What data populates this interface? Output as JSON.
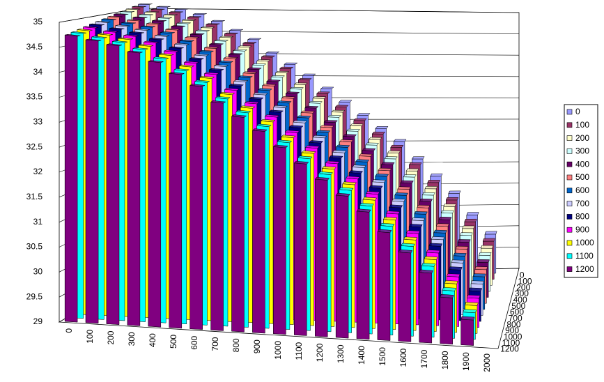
{
  "chart_data": {
    "type": "bar",
    "categories": [
      "0",
      "100",
      "200",
      "300",
      "400",
      "500",
      "600",
      "700",
      "800",
      "900",
      "1000",
      "1100",
      "1200",
      "1300",
      "1400",
      "1500",
      "1600",
      "1700",
      "1800",
      "1900",
      "2000"
    ],
    "ylim": [
      29,
      35
    ],
    "yticks": [
      29,
      29.5,
      30,
      30.5,
      31,
      31.5,
      32,
      32.5,
      33,
      33.5,
      34,
      34.5,
      35
    ],
    "grid": true,
    "legend": "right",
    "series": [
      {
        "name": "0",
        "color": "#9999ff",
        "values": [
          35.11,
          35.06,
          35.01,
          34.91,
          34.76,
          34.56,
          34.36,
          34.06,
          33.81,
          33.56,
          33.26,
          32.96,
          32.66,
          32.36,
          32.06,
          31.66,
          31.26,
          30.86,
          30.36,
          29.91,
          null
        ]
      },
      {
        "name": "100",
        "color": "#993366",
        "values": [
          35.08,
          35.03,
          34.98,
          34.88,
          34.73,
          34.53,
          34.33,
          34.03,
          33.78,
          33.53,
          33.23,
          32.93,
          32.63,
          32.33,
          32.03,
          31.63,
          31.23,
          30.83,
          30.33,
          29.88,
          null
        ]
      },
      {
        "name": "200",
        "color": "#ffffcc",
        "values": [
          35.05,
          35.0,
          34.95,
          34.85,
          34.7,
          34.5,
          34.3,
          34.0,
          33.75,
          33.5,
          33.2,
          32.9,
          32.6,
          32.3,
          32.0,
          31.6,
          31.2,
          30.8,
          30.3,
          29.85,
          null
        ]
      },
      {
        "name": "300",
        "color": "#ccffff",
        "values": [
          35.02,
          34.97,
          34.92,
          34.82,
          34.67,
          34.47,
          34.27,
          33.97,
          33.72,
          33.47,
          33.17,
          32.87,
          32.57,
          32.27,
          31.97,
          31.57,
          31.17,
          30.77,
          30.27,
          29.82,
          null
        ]
      },
      {
        "name": "400",
        "color": "#660066",
        "values": [
          34.99,
          34.94,
          34.89,
          34.79,
          34.64,
          34.44,
          34.24,
          33.94,
          33.69,
          33.44,
          33.14,
          32.84,
          32.54,
          32.24,
          31.94,
          31.54,
          31.14,
          30.74,
          30.24,
          29.79,
          null
        ]
      },
      {
        "name": "500",
        "color": "#ff8080",
        "values": [
          34.96,
          34.91,
          34.86,
          34.76,
          34.61,
          34.41,
          34.21,
          33.91,
          33.66,
          33.41,
          33.11,
          32.81,
          32.51,
          32.21,
          31.91,
          31.51,
          31.11,
          30.71,
          30.21,
          29.76,
          null
        ]
      },
      {
        "name": "600",
        "color": "#0066cc",
        "values": [
          34.93,
          34.88,
          34.83,
          34.73,
          34.58,
          34.38,
          34.18,
          33.88,
          33.63,
          33.38,
          33.08,
          32.78,
          32.48,
          32.18,
          31.88,
          31.48,
          31.08,
          30.68,
          30.18,
          29.73,
          null
        ]
      },
      {
        "name": "700",
        "color": "#ccccff",
        "values": [
          34.9,
          34.85,
          34.8,
          34.7,
          34.55,
          34.35,
          34.15,
          33.85,
          33.6,
          33.35,
          33.05,
          32.75,
          32.45,
          32.15,
          31.85,
          31.45,
          31.05,
          30.65,
          30.15,
          29.7,
          null
        ]
      },
      {
        "name": "800",
        "color": "#000080",
        "values": [
          34.87,
          34.82,
          34.77,
          34.67,
          34.52,
          34.32,
          34.12,
          33.82,
          33.57,
          33.32,
          33.02,
          32.72,
          32.42,
          32.12,
          31.82,
          31.42,
          31.02,
          30.62,
          30.12,
          29.67,
          null
        ]
      },
      {
        "name": "900",
        "color": "#ff00ff",
        "values": [
          34.84,
          34.79,
          34.74,
          34.64,
          34.49,
          34.29,
          34.09,
          33.79,
          33.54,
          33.29,
          32.99,
          32.69,
          32.39,
          32.09,
          31.79,
          31.39,
          30.99,
          30.59,
          30.09,
          29.64,
          null
        ]
      },
      {
        "name": "1000",
        "color": "#ffff00",
        "values": [
          34.81,
          34.76,
          34.71,
          34.61,
          34.46,
          34.26,
          34.06,
          33.76,
          33.51,
          33.26,
          32.96,
          32.66,
          32.36,
          32.06,
          31.76,
          31.36,
          30.96,
          30.56,
          30.06,
          29.61,
          null
        ]
      },
      {
        "name": "1100",
        "color": "#00ffff",
        "values": [
          34.78,
          34.73,
          34.68,
          34.58,
          34.43,
          34.23,
          34.03,
          33.73,
          33.48,
          33.23,
          32.93,
          32.63,
          32.33,
          32.03,
          31.73,
          31.33,
          30.93,
          30.53,
          30.03,
          29.58,
          null
        ]
      },
      {
        "name": "1200",
        "color": "#800080",
        "values": [
          34.75,
          34.7,
          34.65,
          34.55,
          34.4,
          34.2,
          34.0,
          33.7,
          33.45,
          33.2,
          32.9,
          32.6,
          32.3,
          32.0,
          31.7,
          31.3,
          30.9,
          30.5,
          30.0,
          29.55,
          null
        ]
      }
    ]
  }
}
